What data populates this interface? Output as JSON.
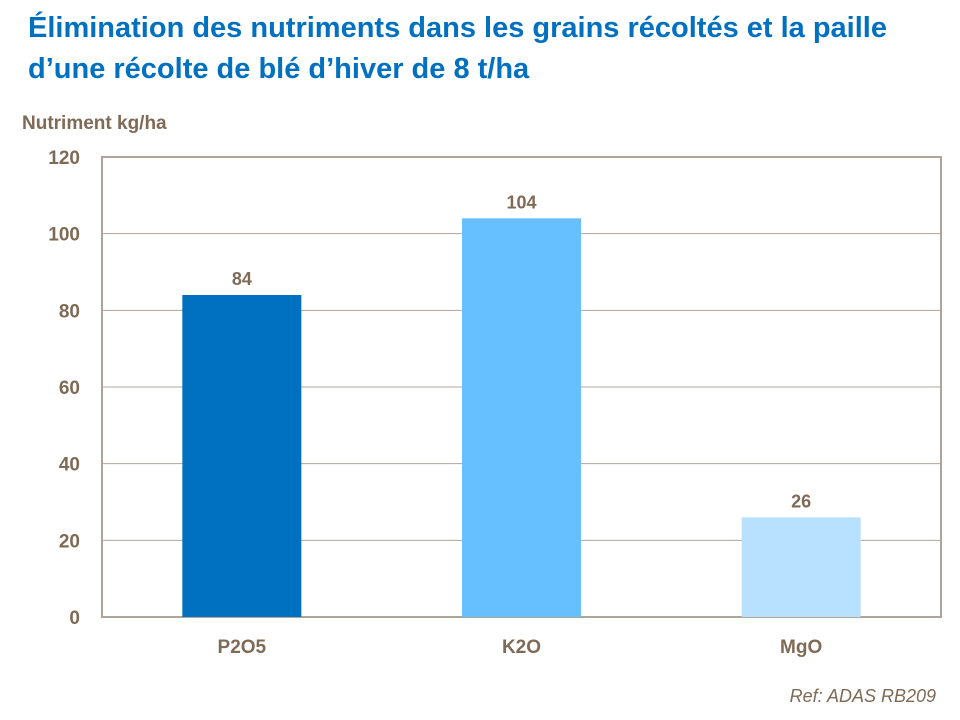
{
  "chart_data": {
    "type": "bar",
    "title": "Élimination des nutriments dans les grains récoltés et la paille d’une récolte de blé d’hiver de 8 t/ha",
    "ylabel": "Nutriment kg/ha",
    "xlabel": "",
    "categories": [
      "P2O5",
      "K2O",
      "MgO"
    ],
    "values": [
      84,
      104,
      26
    ],
    "data_labels": [
      "84",
      "104",
      "26"
    ],
    "bar_colors": [
      "#0070C0",
      "#66BFFF",
      "#B8E0FF"
    ],
    "ylim": [
      0,
      120
    ],
    "yticks": [
      0,
      20,
      40,
      60,
      80,
      100,
      120
    ],
    "grid": true,
    "legend": "none"
  },
  "footer": {
    "ref": "Ref: ADAS RB209"
  },
  "colors": {
    "title": "#0070C0",
    "text": "#7F6A55",
    "axis": "#B0A498"
  }
}
